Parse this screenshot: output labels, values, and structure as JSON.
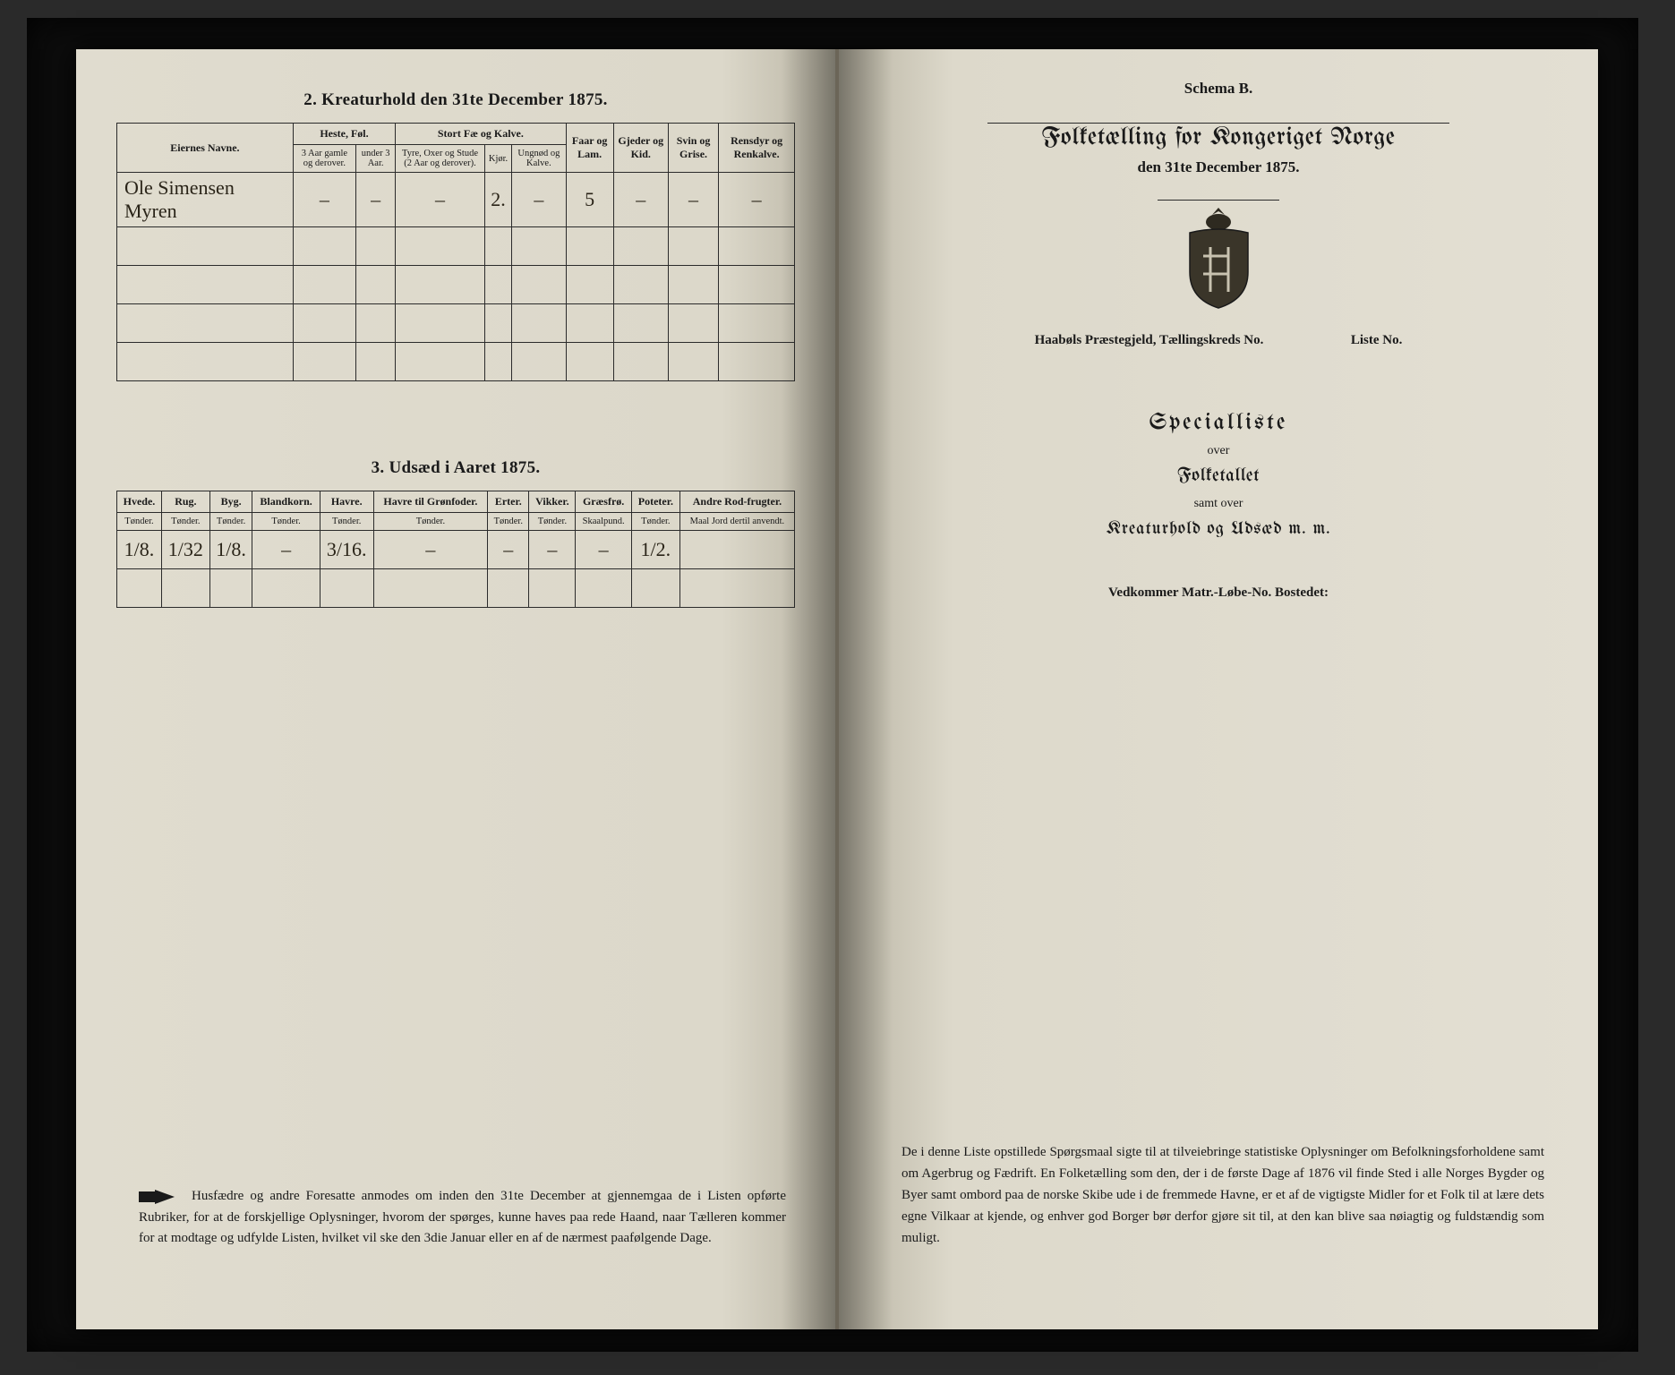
{
  "left_page": {
    "section2": {
      "title": "2.  Kreaturhold den 31te December 1875.",
      "headers": {
        "eier": "Eiernes Navne.",
        "heste_group": "Heste, Føl.",
        "heste_sub": [
          "3 Aar gamle og derover.",
          "under 3 Aar."
        ],
        "storfe_group": "Stort Fæ og Kalve.",
        "storfe_sub": [
          "Tyre, Oxer og Stude (2 Aar og derover).",
          "Kjør.",
          "Ungnød og Kalve."
        ],
        "faar": "Faar og Lam.",
        "gjeder": "Gjeder og Kid.",
        "svin": "Svin og Grise.",
        "rensdyr": "Rensdyr og Renkalve."
      },
      "row": {
        "name": "Ole Simensen Myren",
        "heste_1": "–",
        "heste_2": "–",
        "storfe_1": "–",
        "storfe_2": "2.",
        "storfe_3": "–",
        "faar": "5",
        "gjeder": "–",
        "svin": "–",
        "rensdyr": "–"
      }
    },
    "section3": {
      "title": "3.  Udsæd i Aaret 1875.",
      "cols": [
        {
          "h": "Hvede.",
          "s": "Tønder."
        },
        {
          "h": "Rug.",
          "s": "Tønder."
        },
        {
          "h": "Byg.",
          "s": "Tønder."
        },
        {
          "h": "Blandkorn.",
          "s": "Tønder."
        },
        {
          "h": "Havre.",
          "s": "Tønder."
        },
        {
          "h": "Havre til Grønfoder.",
          "s": "Tønder."
        },
        {
          "h": "Erter.",
          "s": "Tønder."
        },
        {
          "h": "Vikker.",
          "s": "Tønder."
        },
        {
          "h": "Græsfrø.",
          "s": "Skaalpund."
        },
        {
          "h": "Poteter.",
          "s": "Tønder."
        },
        {
          "h": "Andre Rod-frugter.",
          "s": "Maal Jord dertil anvendt."
        }
      ],
      "row": [
        "1/8.",
        "1/32",
        "1/8.",
        "–",
        "3/16.",
        "–",
        "–",
        "–",
        "–",
        "1/2.",
        ""
      ]
    },
    "cue": "Husfædre og andre Foresatte anmodes om inden den 31te December at gjennemgaa de i Listen opførte Rubriker, for at de forskjellige Oplysninger, hvorom der spørges, kunne haves paa rede Haand, naar Tælleren kommer for at modtage og udfylde Listen, hvilket vil ske den 3die Januar eller en af de nærmest paafølgende Dage."
  },
  "right_page": {
    "schema": "Schema B.",
    "title_main": "Folketælling for Kongeriget Norge",
    "title_sub": "den 31te December 1875.",
    "meta_pg": "Haabøls  Præstegjeld,  Tællingskreds No.",
    "meta_liste": "Liste No.",
    "special": "Specialliste",
    "over": "over",
    "folketallet": "Folketallet",
    "samt_over": "samt over",
    "kreatur": "Kreaturhold og Udsæd m. m.",
    "vedkommer": "Vedkommer  Matr.-Løbe-No.            Bostedet:",
    "para": "De i denne Liste opstillede Spørgsmaal sigte til at tilveiebringe statistiske Oplysninger om Befolkningsforholdene samt om Agerbrug og Fædrift.  En Folketælling som den, der i de første Dage af 1876 vil finde Sted i alle Norges Bygder og Byer samt ombord paa de norske Skibe ude i de fremmede Havne, er et af de vigtigste Midler for et Folk til at lære dets egne Vilkaar at kjende, og enhver god Borger bør derfor gjøre sit til, at den kan blive saa nøiagtig og fuldstændig som muligt."
  }
}
